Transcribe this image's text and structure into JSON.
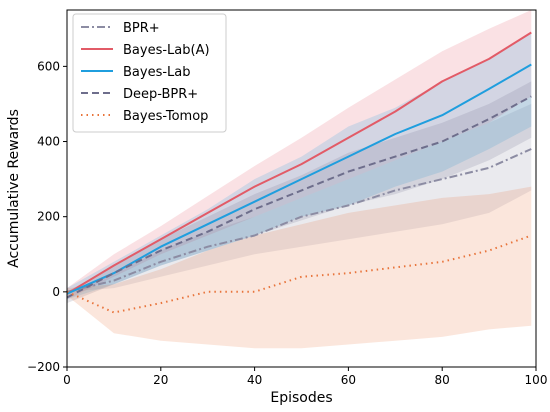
{
  "chart_data": {
    "type": "line",
    "xlabel": "Episodes",
    "ylabel": "Accumulative Rewards",
    "xlim": [
      0,
      100
    ],
    "ylim": [
      -200,
      750
    ],
    "x_ticks": [
      0,
      20,
      40,
      60,
      80,
      100
    ],
    "y_ticks": [
      -200,
      0,
      200,
      400,
      600
    ],
    "grid": false,
    "legend_position": "upper-left",
    "x": [
      0,
      10,
      20,
      30,
      40,
      50,
      60,
      70,
      80,
      90,
      99
    ],
    "series": [
      {
        "name": "BPR+",
        "color": "#8c8ca3",
        "dash": "dashdot",
        "values": [
          0,
          30,
          80,
          120,
          150,
          200,
          230,
          270,
          300,
          330,
          380
        ],
        "band_lower": [
          0,
          10,
          40,
          70,
          100,
          120,
          140,
          160,
          180,
          210,
          270
        ],
        "band_upper": [
          0,
          50,
          110,
          160,
          200,
          250,
          300,
          350,
          400,
          450,
          500
        ]
      },
      {
        "name": "Bayes-Lab(A)",
        "color": "#e25b67",
        "dash": "solid",
        "values": [
          -5,
          70,
          140,
          210,
          280,
          340,
          410,
          480,
          560,
          620,
          690
        ],
        "band_lower": [
          -20,
          40,
          100,
          150,
          200,
          250,
          300,
          350,
          400,
          450,
          520
        ],
        "band_upper": [
          10,
          100,
          175,
          255,
          335,
          410,
          490,
          565,
          640,
          700,
          750
        ]
      },
      {
        "name": "Bayes-Lab",
        "color": "#1f9ede",
        "dash": "solid",
        "values": [
          -5,
          50,
          120,
          180,
          240,
          300,
          360,
          420,
          470,
          540,
          605
        ],
        "band_lower": [
          -20,
          20,
          70,
          110,
          150,
          200,
          230,
          280,
          320,
          380,
          440
        ],
        "band_upper": [
          10,
          80,
          150,
          220,
          300,
          360,
          440,
          490,
          560,
          620,
          690
        ]
      },
      {
        "name": "Deep-BPR+",
        "color": "#6e6e8c",
        "dash": "dashed",
        "values": [
          -15,
          50,
          110,
          160,
          220,
          270,
          320,
          360,
          400,
          460,
          520
        ],
        "band_lower": [
          -30,
          20,
          70,
          110,
          150,
          190,
          230,
          260,
          300,
          350,
          410
        ],
        "band_upper": [
          0,
          70,
          140,
          200,
          260,
          310,
          370,
          410,
          450,
          500,
          560
        ]
      },
      {
        "name": "Bayes-Tomop",
        "color": "#e8743b",
        "dash": "dotted",
        "values": [
          0,
          -55,
          -30,
          0,
          0,
          40,
          50,
          65,
          80,
          110,
          150
        ],
        "band_lower": [
          -10,
          -110,
          -130,
          -140,
          -150,
          -150,
          -140,
          -130,
          -120,
          -100,
          -90
        ],
        "band_upper": [
          10,
          20,
          60,
          110,
          150,
          180,
          210,
          230,
          250,
          260,
          280
        ]
      }
    ]
  }
}
